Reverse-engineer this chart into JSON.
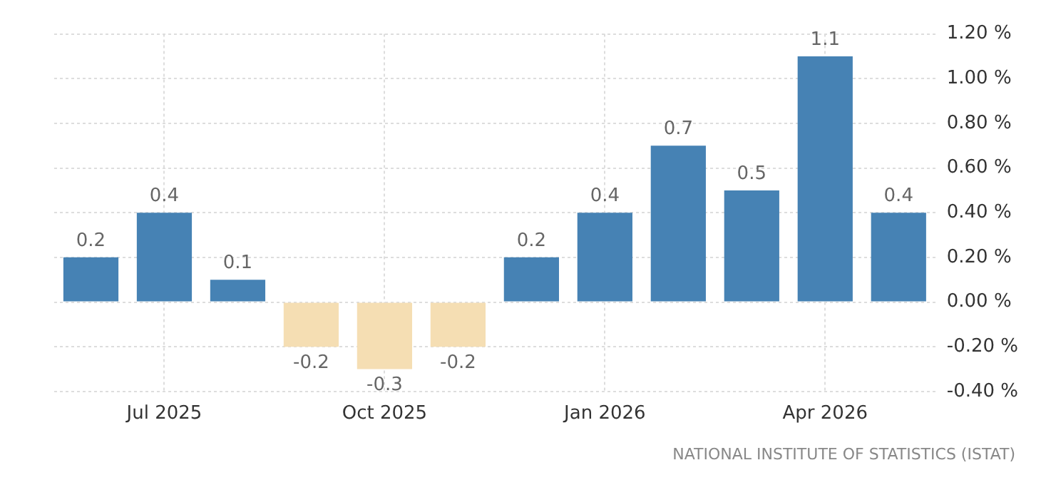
{
  "chart_data": {
    "type": "bar",
    "categories": [
      null,
      "Jul 2025",
      null,
      null,
      "Oct 2025",
      null,
      null,
      "Jan 2026",
      null,
      null,
      "Apr 2026",
      null
    ],
    "values": [
      0.2,
      0.4,
      0.1,
      -0.2,
      -0.3,
      -0.2,
      0.2,
      0.4,
      0.7,
      0.5,
      1.1,
      0.4
    ],
    "colors": [
      "#4682b4",
      "#4682b4",
      "#4682b4",
      "#f5deb3",
      "#f5deb3",
      "#f5deb3",
      "#4682b4",
      "#4682b4",
      "#4682b4",
      "#4682b4",
      "#4682b4",
      "#4682b4"
    ],
    "ylim": [
      -0.4,
      1.2
    ],
    "yticks": [
      {
        "value": -0.4,
        "label": "-0.40 %"
      },
      {
        "value": -0.2,
        "label": "-0.20 %"
      },
      {
        "value": 0,
        "label": "0.00 %"
      },
      {
        "value": 0.2,
        "label": "0.20 %"
      },
      {
        "value": 0.4,
        "label": "0.40 %"
      },
      {
        "value": 0.6,
        "label": "0.60 %"
      },
      {
        "value": 0.8,
        "label": "0.80 %"
      },
      {
        "value": 1,
        "label": "1.00 %"
      },
      {
        "value": 1.2,
        "label": "1.20 %"
      }
    ],
    "grid": true,
    "data_labels": true,
    "annotations": [
      "NATIONAL INSTITUTE OF STATISTICS (ISTAT)"
    ]
  }
}
